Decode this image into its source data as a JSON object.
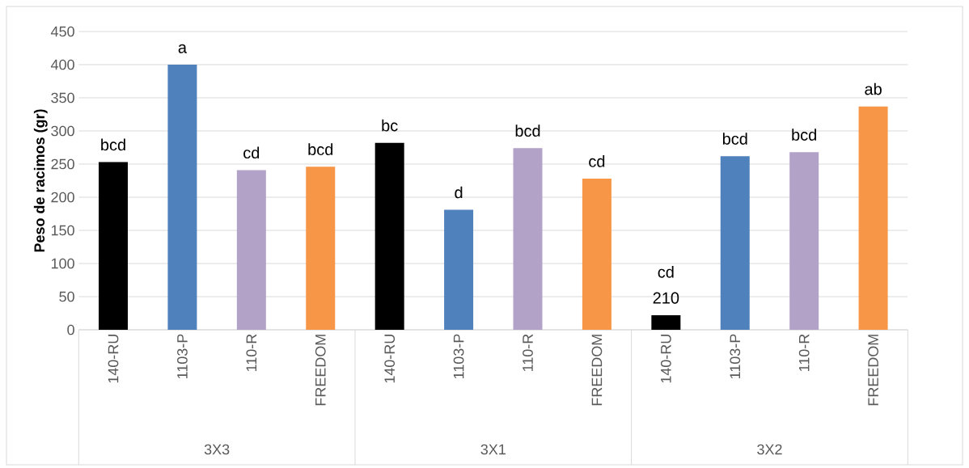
{
  "chart_data": {
    "type": "bar",
    "ylabel": "Peso  de racimos (gr)",
    "categories": [
      "140-RU",
      "1103-P",
      "110-R",
      "FREEDOM",
      "140-RU",
      "1103-P",
      "110-R",
      "FREEDOM",
      "140-RU",
      "1103-P",
      "110-R",
      "FREEDOM"
    ],
    "values": [
      253,
      400,
      241,
      246,
      282,
      181,
      274,
      228,
      22,
      262,
      268,
      337
    ],
    "colors": [
      "#000000",
      "#4f81bd",
      "#b3a2c7",
      "#f79646",
      "#000000",
      "#4f81bd",
      "#b3a2c7",
      "#f79646",
      "#000000",
      "#4f81bd",
      "#b3a2c7",
      "#f79646"
    ],
    "value_labels": [
      "bcd",
      "a",
      "cd",
      "bcd",
      "bc",
      "d",
      "bcd",
      "cd",
      "cd",
      "bcd",
      "bcd",
      "ab"
    ],
    "ylim": [
      0,
      450
    ],
    "yticks": [
      0,
      50,
      100,
      150,
      200,
      250,
      300,
      350,
      400,
      450
    ],
    "grid": "y",
    "annotations": [
      {
        "text": "210",
        "y": 22
      },
      "3X3",
      "3X1",
      "3X2"
    ]
  }
}
